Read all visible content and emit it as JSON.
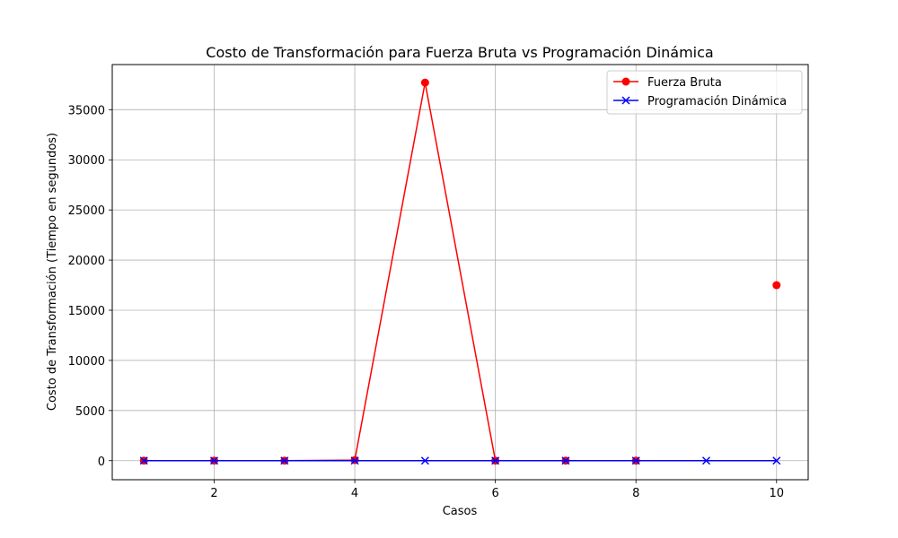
{
  "chart_data": {
    "type": "line",
    "title": "Costo de Transformación para Fuerza Bruta vs Programación Dinámica",
    "xlabel": "Casos",
    "ylabel": "Costo de Transformación (Tiempo en segundos)",
    "xlim": [
      0.55,
      10.45
    ],
    "ylim": [
      -1900,
      39500
    ],
    "xticks": [
      2,
      4,
      6,
      8,
      10
    ],
    "yticks": [
      0,
      5000,
      10000,
      15000,
      20000,
      25000,
      30000,
      35000
    ],
    "grid": true,
    "legend_position": "top-right",
    "series": [
      {
        "name": "Fuerza Bruta",
        "color": "#ff0000",
        "marker": "circle",
        "x": [
          1,
          2,
          3,
          4,
          5,
          6,
          7,
          8,
          9,
          10
        ],
        "y": [
          0,
          0,
          0,
          60,
          37700,
          0,
          0,
          0,
          null,
          17500
        ]
      },
      {
        "name": "Programación Dinámica",
        "color": "#0000ff",
        "marker": "x",
        "x": [
          1,
          2,
          3,
          4,
          5,
          6,
          7,
          8,
          9,
          10
        ],
        "y": [
          0,
          0,
          0,
          0,
          0,
          0,
          0,
          0,
          0,
          0
        ]
      }
    ]
  }
}
